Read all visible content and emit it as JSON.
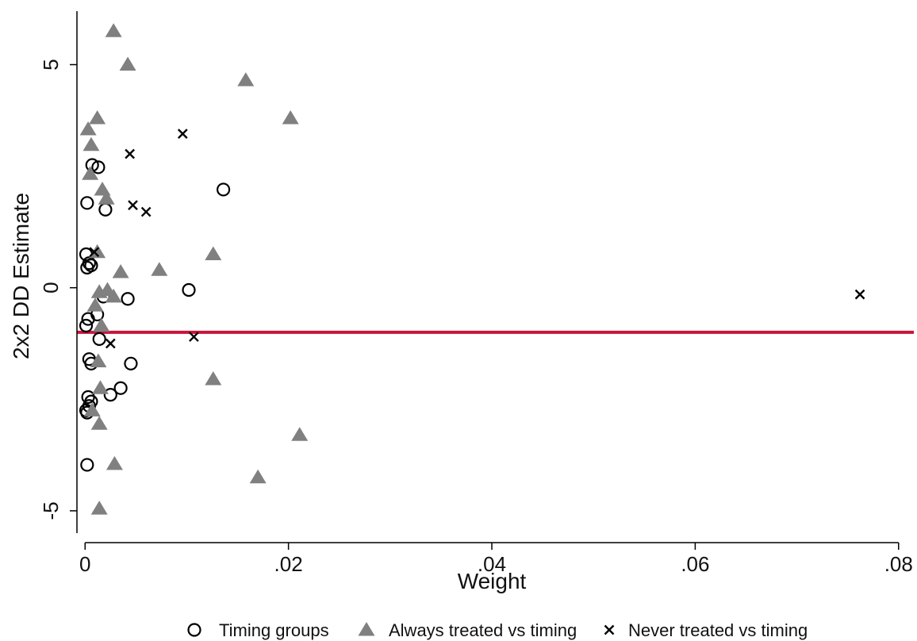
{
  "chart_data": {
    "type": "scatter",
    "xlabel": "Weight",
    "ylabel": "2x2 DD Estimate",
    "xlim": [
      -0.0008,
      0.0815
    ],
    "ylim": [
      -5.5,
      6.2
    ],
    "xticks": [
      0,
      0.02,
      0.04,
      0.06,
      0.08
    ],
    "xtick_labels": [
      "0",
      ".02",
      ".04",
      ".06",
      ".08"
    ],
    "yticks": [
      -5,
      0,
      5
    ],
    "ytick_labels": [
      "-5",
      "0",
      "5"
    ],
    "grid": false,
    "legend_position": "bottom",
    "reference_line": {
      "y": -1,
      "color": "#c8143c"
    },
    "series": [
      {
        "name": "Timing groups",
        "marker": "circle",
        "color": "#000000",
        "points": [
          [
            0.0007,
            2.75
          ],
          [
            0.0013,
            2.7
          ],
          [
            0.0002,
            1.9
          ],
          [
            0.002,
            1.75
          ],
          [
            0.0136,
            2.2
          ],
          [
            0.0001,
            0.75
          ],
          [
            0.0006,
            0.5
          ],
          [
            0.0002,
            0.45
          ],
          [
            0.0004,
            0.55
          ],
          [
            0.0102,
            -0.05
          ],
          [
            0.0042,
            -0.25
          ],
          [
            0.0018,
            -0.2
          ],
          [
            0.0012,
            -0.6
          ],
          [
            0.0003,
            -0.7
          ],
          [
            0.0001,
            -0.85
          ],
          [
            0.0014,
            -1.15
          ],
          [
            0.0004,
            -1.6
          ],
          [
            0.0006,
            -1.7
          ],
          [
            0.0045,
            -1.7
          ],
          [
            0.0035,
            -2.25
          ],
          [
            0.0025,
            -2.4
          ],
          [
            0.0003,
            -2.45
          ],
          [
            0.0006,
            -2.55
          ],
          [
            0.0004,
            -2.65
          ],
          [
            0.0001,
            -2.75
          ],
          [
            0.0002,
            -2.8
          ],
          [
            0.0002,
            -3.97
          ]
        ]
      },
      {
        "name": "Always treated vs timing",
        "marker": "triangle",
        "color": "#808080",
        "points": [
          [
            0.0028,
            5.75
          ],
          [
            0.0042,
            5.0
          ],
          [
            0.0158,
            4.65
          ],
          [
            0.0202,
            3.8
          ],
          [
            0.0012,
            3.8
          ],
          [
            0.0003,
            3.55
          ],
          [
            0.0006,
            3.2
          ],
          [
            0.0005,
            2.55
          ],
          [
            0.0017,
            2.2
          ],
          [
            0.0021,
            2.0
          ],
          [
            0.0012,
            0.8
          ],
          [
            0.0126,
            0.75
          ],
          [
            0.0073,
            0.4
          ],
          [
            0.0035,
            0.35
          ],
          [
            0.0022,
            -0.05
          ],
          [
            0.0014,
            -0.1
          ],
          [
            0.0028,
            -0.2
          ],
          [
            0.001,
            -0.4
          ],
          [
            0.0016,
            -0.85
          ],
          [
            0.0013,
            -1.65
          ],
          [
            0.0126,
            -2.05
          ],
          [
            0.0015,
            -2.25
          ],
          [
            0.0007,
            -2.75
          ],
          [
            0.0014,
            -3.05
          ],
          [
            0.0211,
            -3.3
          ],
          [
            0.0029,
            -3.95
          ],
          [
            0.017,
            -4.25
          ],
          [
            0.0014,
            -4.95
          ]
        ]
      },
      {
        "name": "Never treated vs timing",
        "marker": "cross",
        "color": "#000000",
        "points": [
          [
            0.0096,
            3.45
          ],
          [
            0.0044,
            3.0
          ],
          [
            0.0047,
            1.85
          ],
          [
            0.006,
            1.7
          ],
          [
            0.0009,
            0.8
          ],
          [
            0.0025,
            -1.25
          ],
          [
            0.0107,
            -1.1
          ],
          [
            0.0762,
            -0.15
          ]
        ]
      }
    ]
  }
}
